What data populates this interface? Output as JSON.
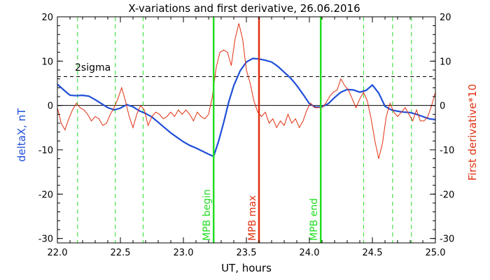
{
  "chart_data": {
    "type": "line",
    "title": "X-variations and first derivative, 26.06.2016",
    "xlabel": "UT, hours",
    "ylabel": "deltaX, nT",
    "ylabel_right": "First derivative*10",
    "xlim": [
      22.0,
      25.0
    ],
    "ylim": [
      -31,
      20
    ],
    "xticks": [
      "22.0",
      "22.5",
      "23.0",
      "23.5",
      "24.0",
      "24.5",
      "25.0"
    ],
    "yticks": [
      "20",
      "10",
      "0",
      "-10",
      "-20",
      "-30"
    ],
    "yticks_right": [
      "20",
      "10",
      "0",
      "-10",
      "-20",
      "-30"
    ],
    "zero_line": 0,
    "sigma_line": {
      "label": "2sigma",
      "y": 6.5
    },
    "dashed_verticals": [
      22.16,
      22.46,
      22.68,
      24.43,
      24.66,
      24.81
    ],
    "markers": [
      {
        "label": "MPB begin",
        "x": 23.24,
        "color": "#22dd22"
      },
      {
        "label": "MPB max",
        "x": 23.6,
        "color": "#e03010"
      },
      {
        "label": "MPB end",
        "x": 24.09,
        "color": "#22dd22"
      }
    ],
    "series": [
      {
        "color": "#1f4fd8",
        "x": [
          22.0,
          22.05,
          22.1,
          22.15,
          22.2,
          22.25,
          22.3,
          22.35,
          22.4,
          22.45,
          22.5,
          22.55,
          22.6,
          22.65,
          22.7,
          22.75,
          22.8,
          22.85,
          22.9,
          22.95,
          23.0,
          23.05,
          23.1,
          23.15,
          23.2,
          23.24,
          23.28,
          23.32,
          23.36,
          23.4,
          23.45,
          23.5,
          23.55,
          23.6,
          23.65,
          23.7,
          23.75,
          23.8,
          23.85,
          23.9,
          23.95,
          24.0,
          24.05,
          24.1,
          24.15,
          24.2,
          24.25,
          24.3,
          24.35,
          24.4,
          24.45,
          24.5,
          24.55,
          24.6,
          24.65,
          24.7,
          24.75,
          24.8,
          24.85,
          24.9,
          24.95,
          25.0
        ],
        "y": [
          4.8,
          3.5,
          2.3,
          2.2,
          2.3,
          2.1,
          1.3,
          0.4,
          -0.5,
          -1.0,
          -0.6,
          0.2,
          -0.3,
          -1.2,
          -1.8,
          -2.6,
          -3.8,
          -5.0,
          -6.2,
          -7.2,
          -8.2,
          -9.0,
          -9.6,
          -10.3,
          -11.0,
          -11.5,
          -8.0,
          -3.8,
          0.8,
          4.5,
          7.8,
          9.8,
          10.6,
          10.5,
          10.2,
          9.8,
          8.8,
          7.5,
          6.2,
          4.5,
          2.5,
          0.4,
          -0.4,
          -0.3,
          0.4,
          1.8,
          3.0,
          3.6,
          3.5,
          3.0,
          3.4,
          4.6,
          2.8,
          -0.2,
          -1.0,
          -1.3,
          -1.5,
          -1.6,
          -2.0,
          -2.5,
          -3.0,
          -3.2
        ]
      },
      {
        "color": "#e03010",
        "x": [
          22.0,
          22.03,
          22.06,
          22.09,
          22.12,
          22.15,
          22.18,
          22.21,
          22.24,
          22.27,
          22.3,
          22.33,
          22.36,
          22.39,
          22.42,
          22.45,
          22.48,
          22.51,
          22.54,
          22.57,
          22.6,
          22.63,
          22.66,
          22.69,
          22.72,
          22.75,
          22.78,
          22.81,
          22.84,
          22.87,
          22.9,
          22.93,
          22.96,
          22.99,
          23.02,
          23.05,
          23.08,
          23.11,
          23.14,
          23.17,
          23.2,
          23.23,
          23.26,
          23.29,
          23.32,
          23.35,
          23.38,
          23.41,
          23.44,
          23.47,
          23.5,
          23.53,
          23.56,
          23.59,
          23.62,
          23.65,
          23.68,
          23.71,
          23.74,
          23.77,
          23.8,
          23.83,
          23.86,
          23.89,
          23.92,
          23.95,
          23.98,
          24.01,
          24.04,
          24.07,
          24.1,
          24.13,
          24.16,
          24.19,
          24.22,
          24.25,
          24.28,
          24.31,
          24.34,
          24.37,
          24.4,
          24.43,
          24.46,
          24.49,
          24.52,
          24.55,
          24.58,
          24.61,
          24.64,
          24.67,
          24.7,
          24.73,
          24.76,
          24.79,
          24.82,
          24.85,
          24.88,
          24.91,
          24.94,
          24.97,
          25.0
        ],
        "y": [
          -0.5,
          -4.0,
          -5.5,
          -3.0,
          -1.0,
          0.5,
          -0.5,
          -1.0,
          -2.0,
          -3.5,
          -2.5,
          -3.0,
          -4.5,
          -4.0,
          -2.0,
          -0.5,
          1.5,
          4.0,
          1.0,
          -2.5,
          -5.0,
          -2.0,
          0.0,
          -1.0,
          -4.5,
          -2.5,
          -1.5,
          -2.0,
          -3.0,
          -2.5,
          -1.5,
          -2.5,
          -1.0,
          -2.0,
          -1.0,
          -2.0,
          -3.5,
          -1.5,
          -2.5,
          -3.0,
          -2.0,
          2.0,
          8.5,
          12.0,
          12.5,
          12.0,
          9.0,
          15.0,
          18.5,
          15.0,
          8.0,
          5.0,
          1.0,
          -1.5,
          -2.5,
          -1.5,
          -4.0,
          -3.0,
          -5.0,
          -3.5,
          -4.5,
          -2.0,
          -4.0,
          -3.0,
          -5.0,
          -3.5,
          -1.0,
          0.5,
          -0.5,
          -0.5,
          -0.5,
          0.5,
          2.0,
          3.0,
          3.5,
          6.0,
          4.5,
          3.5,
          1.5,
          -0.5,
          1.5,
          3.0,
          1.0,
          -3.0,
          -8.0,
          -12.0,
          -8.5,
          -2.5,
          0.5,
          -1.5,
          -2.5,
          -1.5,
          -0.5,
          -2.0,
          -3.5,
          -1.0,
          -3.5,
          -3.5,
          -2.5,
          0.0,
          3.0
        ]
      }
    ]
  }
}
